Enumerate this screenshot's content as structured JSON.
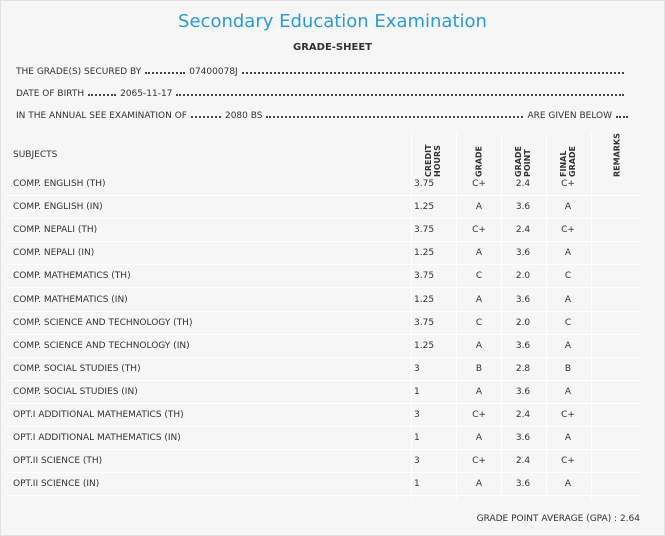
{
  "header": {
    "title": "Secondary Education Examination",
    "subtitle": "GRADE-SHEET"
  },
  "info": [
    {
      "label": "THE GRADE(S) SECURED BY",
      "value": "07400078J"
    },
    {
      "label": "DATE OF BIRTH",
      "value": "2065-11-17"
    },
    {
      "label": "IN THE ANNUAL SEE EXAMINATION OF",
      "value": "2080 BS",
      "tail": "ARE GIVEN BELOW"
    }
  ],
  "table": {
    "columns": [
      "SUBJECTS",
      "CREDIT HOURS",
      "GRADE",
      "GRADE POINT",
      "FINAL GRADE",
      "REMARKS"
    ],
    "rows": [
      [
        "COMP. ENGLISH (TH)",
        "3.75",
        "C+",
        "2.4",
        "C+"
      ],
      [
        "COMP. ENGLISH (IN)",
        "1.25",
        "A",
        "3.6",
        "A"
      ],
      [
        "COMP. NEPALI (TH)",
        "3.75",
        "C+",
        "2.4",
        "C+"
      ],
      [
        "COMP. NEPALI (IN)",
        "1.25",
        "A",
        "3.6",
        "A"
      ],
      [
        "COMP. MATHEMATICS (TH)",
        "3.75",
        "C",
        "2.0",
        "C"
      ],
      [
        "COMP. MATHEMATICS (IN)",
        "1.25",
        "A",
        "3.6",
        "A"
      ],
      [
        "COMP. SCIENCE AND TECHNOLOGY (TH)",
        "3.75",
        "C",
        "2.0",
        "C"
      ],
      [
        "COMP. SCIENCE AND TECHNOLOGY (IN)",
        "1.25",
        "A",
        "3.6",
        "A"
      ],
      [
        "COMP. SOCIAL STUDIES (TH)",
        "3",
        "B",
        "2.8",
        "B"
      ],
      [
        "COMP. SOCIAL STUDIES (IN)",
        "1",
        "A",
        "3.6",
        "A"
      ],
      [
        "OPT.I ADDITIONAL MATHEMATICS (TH)",
        "3",
        "C+",
        "2.4",
        "C+"
      ],
      [
        "OPT.I ADDITIONAL MATHEMATICS (IN)",
        "1",
        "A",
        "3.6",
        "A"
      ],
      [
        "OPT.II SCIENCE (TH)",
        "3",
        "C+",
        "2.4",
        "C+"
      ],
      [
        "OPT.II SCIENCE (IN)",
        "1",
        "A",
        "3.6",
        "A"
      ]
    ]
  },
  "footer": {
    "gpa": "GRADE POINT AVERAGE (GPA) : 2.64"
  }
}
